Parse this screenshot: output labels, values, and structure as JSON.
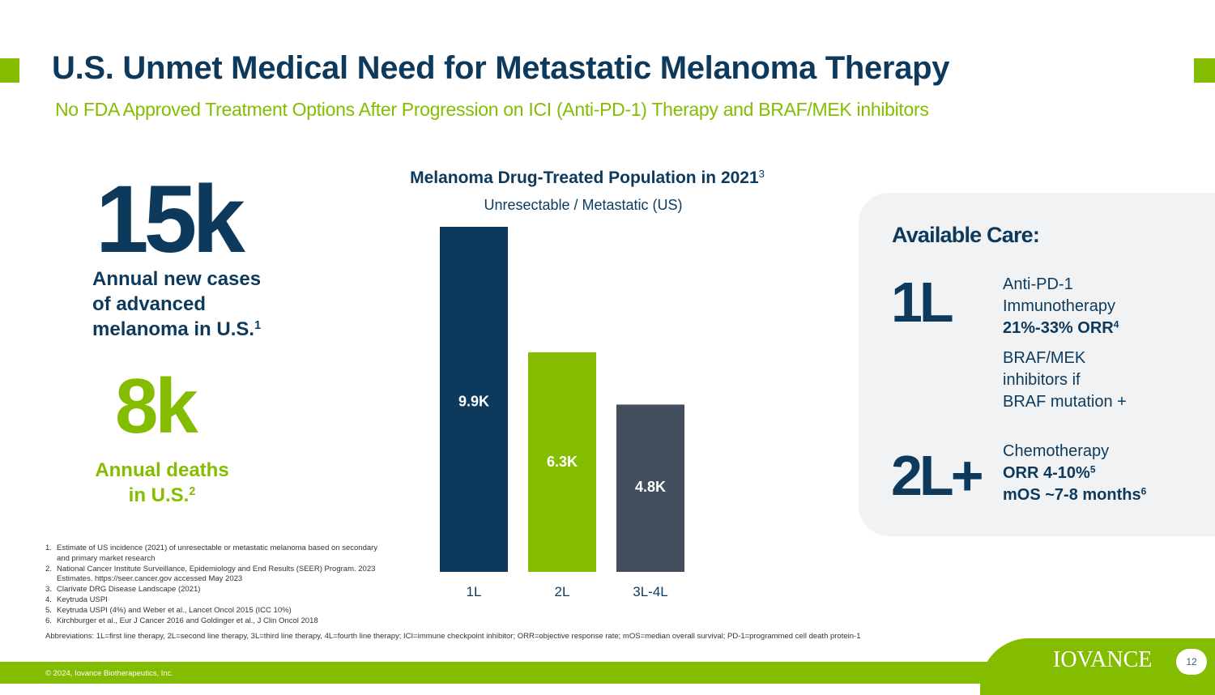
{
  "slide": {
    "title": "U.S. Unmet Medical Need for Metastatic Melanoma Therapy",
    "subtitle": "No FDA Approved Treatment Options After Progression on ICI (Anti-PD-1) Therapy and BRAF/MEK inhibitors",
    "page_number": "12",
    "copyright": "© 2024, Iovance Biotherapeutics, Inc.",
    "logo_text": "IOVANCE"
  },
  "colors": {
    "navy": "#0d3a5c",
    "green": "#84bd00",
    "slate": "#434f5e",
    "panel": "#f1f2f3"
  },
  "stats": {
    "new_cases_value": "15k",
    "new_cases_lines": [
      "Annual new cases",
      "of advanced",
      "melanoma in U.S."
    ],
    "new_cases_ref": "1",
    "deaths_value": "8k",
    "deaths_lines": [
      "Annual deaths",
      "in U.S."
    ],
    "deaths_ref": "2"
  },
  "chart_data": {
    "type": "bar",
    "title": "Melanoma Drug-Treated Population in 2021",
    "title_ref": "3",
    "subtitle": "Unresectable / Metastatic (US)",
    "categories": [
      "1L",
      "2L",
      "3L-4L"
    ],
    "values": [
      9.9,
      6.3,
      4.8
    ],
    "value_labels": [
      "9.9K",
      "6.3K",
      "4.8K"
    ],
    "colors": [
      "#0d3a5c",
      "#84bd00",
      "#434f5e"
    ],
    "ylim": [
      0,
      9.9
    ],
    "grid": false
  },
  "care": {
    "title": "Available Care:",
    "first_line": {
      "label": "1L",
      "line1": "Anti-PD-1",
      "line2": "Immunotherapy",
      "orr": "21%-33% ORR",
      "orr_ref": "4",
      "braf1": "BRAF/MEK",
      "braf2": "inhibitors if",
      "braf3": "BRAF mutation +"
    },
    "second_line": {
      "label": "2L+",
      "line1": "Chemotherapy",
      "orr": "ORR 4-10%",
      "orr_ref": "5",
      "mos": "mOS ~7-8 months",
      "mos_ref": "6"
    }
  },
  "footnotes": [
    {
      "num": "1.",
      "text": "Estimate of US incidence (2021) of unresectable or metastatic melanoma based on secondary and primary market research"
    },
    {
      "num": "2.",
      "text": "National Cancer Institute Surveillance, Epidemiology and End Results (SEER) Program. 2023 Estimates. https://seer.cancer.gov accessed May 2023"
    },
    {
      "num": "3.",
      "text": "Clarivate DRG Disease Landscape (2021)"
    },
    {
      "num": "4.",
      "text": "Keytruda USPI"
    },
    {
      "num": "5.",
      "text": "Keytruda USPI (4%) and Weber et al., Lancet Oncol 2015 (ICC 10%)"
    },
    {
      "num": "6.",
      "text": "Kirchburger et al., Eur J Cancer 2016 and Goldinger et al., J Clin Oncol 2018"
    }
  ],
  "abbreviations": "Abbreviations: 1L=first line therapy, 2L=second line therapy, 3L=third line therapy, 4L=fourth line therapy; ICI=immune checkpoint inhibitor; ORR=objective response rate; mOS=median overall survival; PD-1=programmed cell death protein-1"
}
